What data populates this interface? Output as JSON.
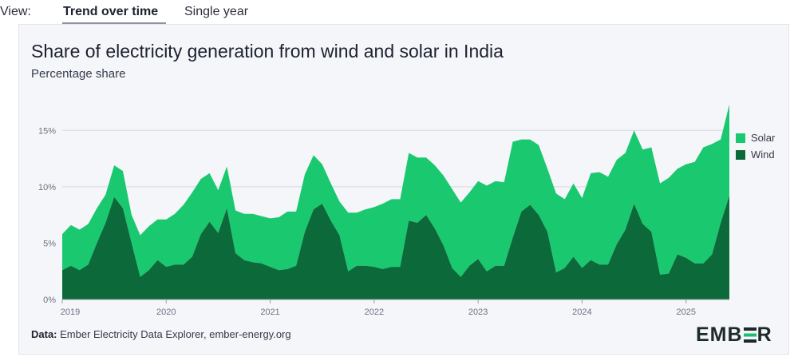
{
  "view": {
    "label": "View:",
    "tabs": [
      {
        "label": "Trend over time",
        "active": true
      },
      {
        "label": "Single year",
        "active": false
      }
    ]
  },
  "chart": {
    "title": "Share of electricity generation from wind and solar in India",
    "subtitle": "Percentage share",
    "source_prefix": "Data:",
    "source_text": " Ember Electricity Data Explorer, ember-energy.org",
    "logo": "EMBER"
  },
  "colors": {
    "solar": "#1ac96f",
    "wind": "#0c6a3a",
    "grid": "#d6d9e1",
    "axis": "#6b7280"
  },
  "chart_data": {
    "type": "area",
    "stacked": true,
    "title": "Share of electricity generation from wind and solar in India",
    "ylabel": "Percentage share",
    "ylim": [
      0,
      17.5
    ],
    "yticks": [
      0,
      5,
      10,
      15
    ],
    "ytick_labels": [
      "0%",
      "5%",
      "10%",
      "15%"
    ],
    "xticks": [
      "2019",
      "2020",
      "2021",
      "2022",
      "2023",
      "2024",
      "2025"
    ],
    "x_start": "2019-01",
    "x_end": "2025-06",
    "legend": [
      "Solar",
      "Wind"
    ],
    "series": [
      {
        "name": "Wind",
        "values": [
          2.6,
          3.0,
          2.6,
          3.1,
          5.0,
          6.8,
          9.1,
          8.1,
          5.0,
          2.0,
          2.6,
          3.5,
          2.9,
          3.1,
          3.1,
          3.8,
          5.8,
          6.9,
          5.9,
          8.1,
          4.1,
          3.5,
          3.3,
          3.2,
          2.9,
          2.6,
          2.7,
          3.0,
          6.0,
          8.0,
          8.5,
          7.0,
          5.7,
          2.5,
          3.0,
          3.0,
          2.9,
          2.7,
          2.9,
          2.9,
          7.0,
          6.8,
          7.5,
          6.3,
          4.8,
          2.8,
          2.0,
          3.0,
          3.6,
          2.5,
          3.0,
          3.0,
          5.5,
          7.8,
          8.4,
          7.5,
          6.0,
          2.4,
          2.8,
          3.8,
          2.8,
          3.5,
          3.1,
          3.1,
          4.9,
          6.2,
          8.5,
          6.7,
          6.0,
          2.2,
          2.3,
          4.0,
          3.7,
          3.2,
          3.2,
          4.0,
          6.8,
          9.2
        ]
      },
      {
        "name": "Solar",
        "values": [
          3.2,
          3.6,
          3.6,
          3.6,
          3.1,
          2.5,
          2.8,
          3.3,
          2.5,
          3.7,
          3.9,
          3.6,
          4.2,
          4.5,
          5.3,
          5.7,
          4.9,
          4.3,
          3.8,
          3.7,
          3.8,
          4.1,
          4.3,
          4.2,
          4.3,
          4.7,
          5.1,
          4.8,
          5.1,
          4.8,
          3.5,
          3.3,
          3.0,
          5.2,
          4.7,
          5.0,
          5.3,
          5.8,
          6.0,
          6.0,
          6.0,
          5.8,
          5.1,
          5.6,
          6.2,
          7.0,
          6.6,
          6.5,
          6.9,
          7.6,
          7.5,
          7.4,
          8.5,
          6.4,
          5.8,
          6.2,
          5.6,
          7.0,
          6.1,
          6.5,
          6.2,
          7.7,
          8.2,
          7.8,
          7.5,
          6.8,
          6.5,
          6.6,
          7.5,
          8.1,
          8.5,
          7.6,
          8.3,
          9.0,
          10.3,
          9.8,
          7.4,
          8.1
        ]
      }
    ]
  }
}
